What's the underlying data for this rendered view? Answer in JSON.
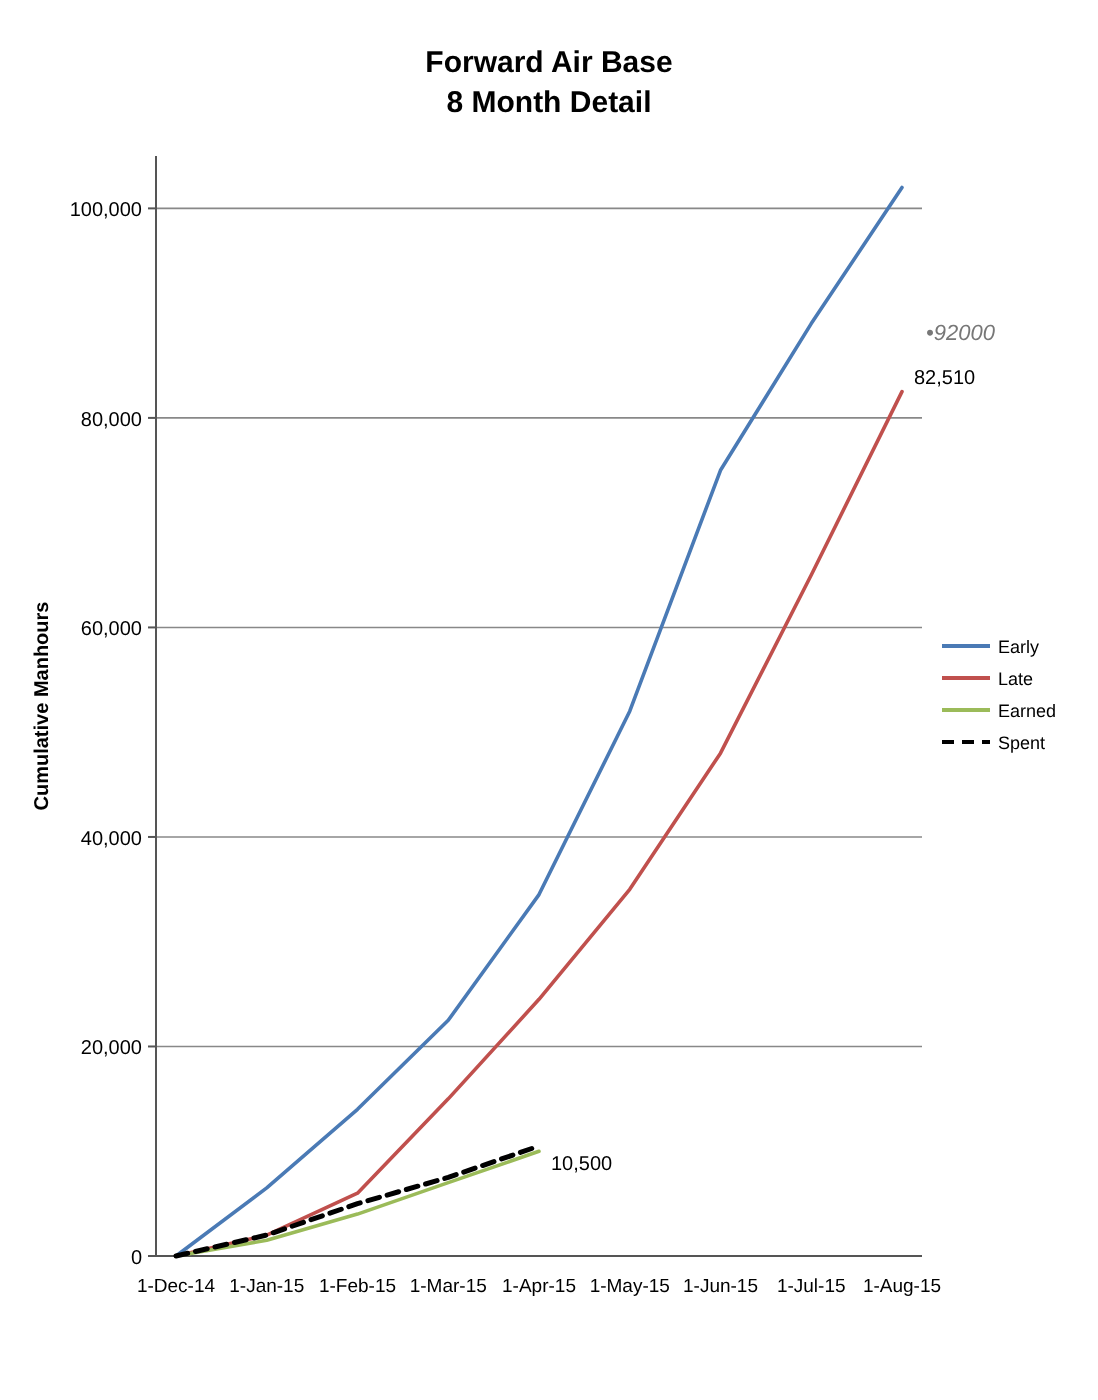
{
  "chart_data": {
    "type": "line",
    "title": "Forward Air Base\n8 Month Detail",
    "ylabel": "Cumulative Manhours",
    "categories": [
      "1-Dec-14",
      "1-Jan-15",
      "1-Feb-15",
      "1-Mar-15",
      "1-Apr-15",
      "1-May-15",
      "1-Jun-15",
      "1-Jul-15",
      "1-Aug-15"
    ],
    "series": [
      {
        "name": "Early",
        "color": "#4a7ab5",
        "values": [
          0,
          6500,
          14000,
          22500,
          34500,
          52000,
          75000,
          89000,
          102000
        ]
      },
      {
        "name": "Late",
        "color": "#c0504d",
        "values": [
          0,
          2000,
          6000,
          15000,
          24500,
          35000,
          48000,
          65000,
          82510
        ],
        "value_labels": [
          null,
          null,
          null,
          null,
          null,
          null,
          null,
          null,
          "82,510"
        ]
      },
      {
        "name": "Earned",
        "color": "#9bbb59",
        "values": [
          0,
          1500,
          4000,
          7000,
          10000,
          null,
          null,
          null,
          null
        ]
      },
      {
        "name": "Spent",
        "color": "#000000",
        "line_style": "dashed",
        "values": [
          0,
          2000,
          5000,
          7500,
          10500,
          null,
          null,
          null,
          null
        ],
        "value_labels": [
          null,
          null,
          null,
          null,
          "10,500",
          null,
          null,
          null,
          null
        ]
      }
    ],
    "annotations": [
      "•92000"
    ],
    "ylim": [
      0,
      105000
    ],
    "yticks": [
      {
        "value": 0,
        "label": "0"
      },
      {
        "value": 20000,
        "label": "20,000"
      },
      {
        "value": 40000,
        "label": "40,000"
      },
      {
        "value": 60000,
        "label": "60,000"
      },
      {
        "value": 80000,
        "label": "80,000"
      },
      {
        "value": 100000,
        "label": "100,000"
      }
    ],
    "grid": "y",
    "legend": "right"
  }
}
